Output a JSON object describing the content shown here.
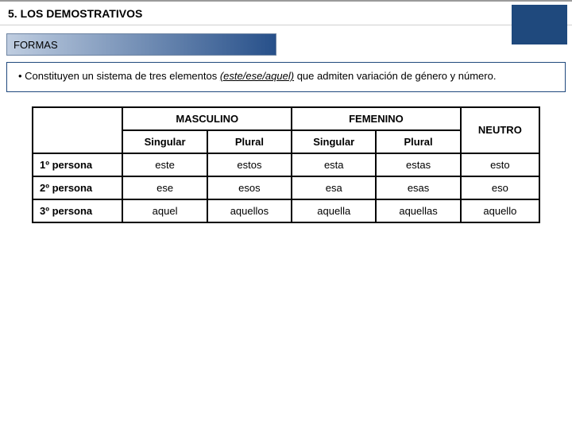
{
  "title": "5. LOS DEMOSTRATIVOS",
  "subtitle": "FORMAS",
  "description": {
    "prefix": "•  Constituyen un sistema de tres elementos ",
    "emph": "(este/ese/aquel)",
    "suffix": " que admiten variación de género y número."
  },
  "colors": {
    "accent_dark": "#1f497d",
    "grad_start": "#bfcde0",
    "grad_end": "#27508a",
    "border_gray": "#9a9a9a"
  },
  "table": {
    "top_headers": [
      "MASCULINO",
      "FEMENINO",
      "NEUTRO"
    ],
    "sub_headers": [
      "Singular",
      "Plural",
      "Singular",
      "Plural"
    ],
    "row_labels": [
      "1º persona",
      "2º persona",
      "3º persona"
    ],
    "rows": [
      [
        "este",
        "estos",
        "esta",
        "estas",
        "esto"
      ],
      [
        "ese",
        "esos",
        "esa",
        "esas",
        "eso"
      ],
      [
        "aquel",
        "aquellos",
        "aquella",
        "aquellas",
        "aquello"
      ]
    ],
    "col_widths_pct": [
      16,
      15,
      15,
      15,
      15,
      14
    ]
  }
}
